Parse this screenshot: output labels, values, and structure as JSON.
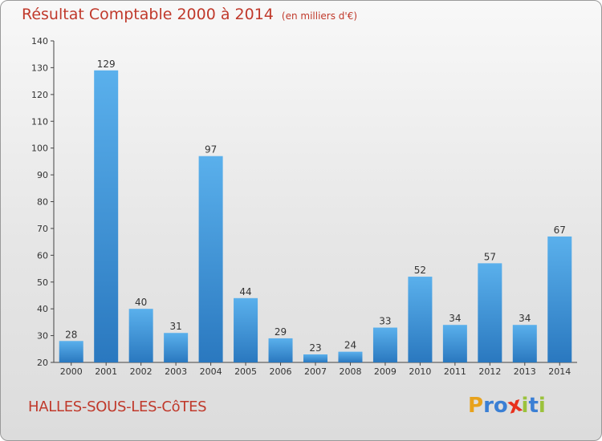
{
  "title": "Résultat Comptable 2000 à 2014",
  "subtitle": "(en milliers d'€)",
  "commune": "HALLES-SOUS-LES-CôTES",
  "logo": {
    "letters": [
      "P",
      "r",
      "o",
      "x",
      "i",
      "t",
      "i"
    ],
    "colors": [
      "#e8a21c",
      "#3a7fd4",
      "#3a7fd4",
      "#e8301c",
      "#9bc23c",
      "#3a7fd4",
      "#9bc23c"
    ]
  },
  "colors": {
    "bar_light": "#5ab0ec",
    "bar_dark": "#2a78bf",
    "text": "#c0392b",
    "axis": "#444444"
  },
  "chart_data": {
    "type": "bar",
    "categories": [
      "2000",
      "2001",
      "2002",
      "2003",
      "2004",
      "2005",
      "2006",
      "2007",
      "2008",
      "2009",
      "2010",
      "2011",
      "2012",
      "2013",
      "2014"
    ],
    "values": [
      28,
      129,
      40,
      31,
      97,
      44,
      29,
      23,
      24,
      33,
      52,
      34,
      57,
      34,
      67
    ],
    "data_labels": [
      "28",
      "129",
      "40",
      "31",
      "97",
      "44",
      "29",
      "23",
      "24",
      "33",
      "52",
      "34",
      "57",
      "34",
      "67"
    ],
    "ylim": [
      20,
      140
    ],
    "yticks": [
      20,
      30,
      40,
      50,
      60,
      70,
      80,
      90,
      100,
      110,
      120,
      130,
      140
    ],
    "ytick_labels": [
      "20",
      "30",
      "40",
      "50",
      "60",
      "70",
      "80",
      "90",
      "100",
      "110",
      "120",
      "130",
      "140"
    ],
    "grid": false
  }
}
